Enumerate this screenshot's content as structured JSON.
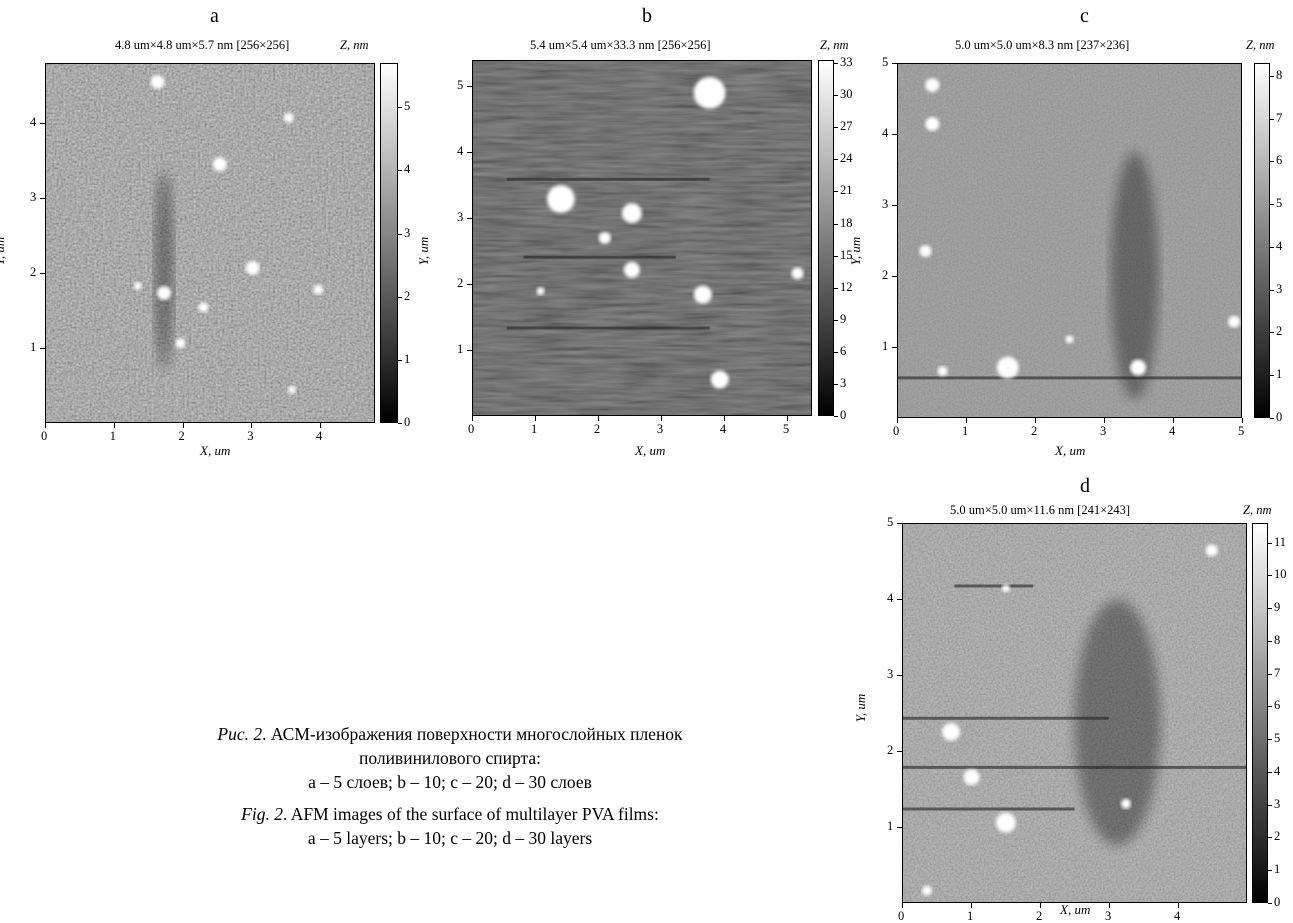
{
  "panels": [
    {
      "id": "a",
      "letter": "a",
      "scan_info": "4.8 um×4.8 um×5.7 nm [256×256]",
      "z_title": "Z, nm",
      "x_title": "X, um",
      "y_title": "Y, um",
      "x_ticks": [
        "0",
        "1",
        "2",
        "3",
        "4"
      ],
      "x_tick_values": [
        0,
        1,
        2,
        3,
        4
      ],
      "x_range": [
        0,
        4.8
      ],
      "y_ticks": [
        "1",
        "2",
        "3",
        "4"
      ],
      "y_tick_values": [
        1,
        2,
        3,
        4
      ],
      "y_range": [
        0,
        4.8
      ],
      "z_ticks": [
        "0",
        "1",
        "2",
        "3",
        "4",
        "5"
      ],
      "z_tick_values": [
        0,
        1,
        2,
        3,
        4,
        5
      ],
      "z_range": [
        0,
        5.7
      ]
    },
    {
      "id": "b",
      "letter": "b",
      "scan_info": "5.4 um×5.4 um×33.3 nm [256×256]",
      "z_title": "Z, nm",
      "x_title": "X, um",
      "y_title": "Y, um",
      "x_ticks": [
        "0",
        "1",
        "2",
        "3",
        "4",
        "5"
      ],
      "x_tick_values": [
        0,
        1,
        2,
        3,
        4,
        5
      ],
      "x_range": [
        0,
        5.4
      ],
      "y_ticks": [
        "1",
        "2",
        "3",
        "4",
        "5"
      ],
      "y_tick_values": [
        1,
        2,
        3,
        4,
        5
      ],
      "y_range": [
        0,
        5.4
      ],
      "z_ticks": [
        "0",
        "3",
        "6",
        "9",
        "12",
        "15",
        "18",
        "21",
        "24",
        "27",
        "30",
        "33"
      ],
      "z_tick_values": [
        0,
        3,
        6,
        9,
        12,
        15,
        18,
        21,
        24,
        27,
        30,
        33
      ],
      "z_range": [
        0,
        33.3
      ]
    },
    {
      "id": "c",
      "letter": "c",
      "scan_info": "5.0 um×5.0 um×8.3 nm [237×236]",
      "z_title": "Z, nm",
      "x_title": "X, um",
      "y_title": "Y, um",
      "x_ticks": [
        "0",
        "1",
        "2",
        "3",
        "4",
        "5"
      ],
      "x_tick_values": [
        0,
        1,
        2,
        3,
        4,
        5
      ],
      "x_range": [
        0,
        5.0
      ],
      "y_ticks": [
        "1",
        "2",
        "3",
        "4",
        "5"
      ],
      "y_tick_values": [
        1,
        2,
        3,
        4,
        5
      ],
      "y_range": [
        0,
        5.0
      ],
      "z_ticks": [
        "0",
        "1",
        "2",
        "3",
        "4",
        "5",
        "6",
        "7",
        "8"
      ],
      "z_tick_values": [
        0,
        1,
        2,
        3,
        4,
        5,
        6,
        7,
        8
      ],
      "z_range": [
        0,
        8.3
      ]
    },
    {
      "id": "d",
      "letter": "d",
      "scan_info": "5.0 um×5.0 um×11.6 nm [241×243]",
      "z_title": "Z, nm",
      "x_title": "X, um",
      "y_title": "Y, um",
      "x_ticks": [
        "0",
        "1",
        "2",
        "3",
        "4"
      ],
      "x_tick_values": [
        0,
        1,
        2,
        3,
        4
      ],
      "x_range": [
        0,
        5.0
      ],
      "y_ticks": [
        "1",
        "2",
        "3",
        "4",
        "5"
      ],
      "y_tick_values": [
        1,
        2,
        3,
        4,
        5
      ],
      "y_range": [
        0,
        5.0
      ],
      "z_ticks": [
        "0",
        "1",
        "2",
        "3",
        "4",
        "5",
        "6",
        "7",
        "8",
        "9",
        "10",
        "11"
      ],
      "z_tick_values": [
        0,
        1,
        2,
        3,
        4,
        5,
        6,
        7,
        8,
        9,
        10,
        11
      ],
      "z_range": [
        0,
        11.6
      ]
    }
  ],
  "caption": {
    "ru_label": "Рис. 2",
    "ru_line1": ". АСМ-изображения поверхности многослойных пленок",
    "ru_line2": "поливинилового спирта:",
    "ru_line3": "a – 5 слоев; b – 10; c – 20; d – 30 слоев",
    "en_label": "Fig. 2",
    "en_line1": ". AFM images of the surface of multilayer PVA films:",
    "en_line2": "a – 5 layers; b – 10; c – 20; d – 30 layers"
  }
}
